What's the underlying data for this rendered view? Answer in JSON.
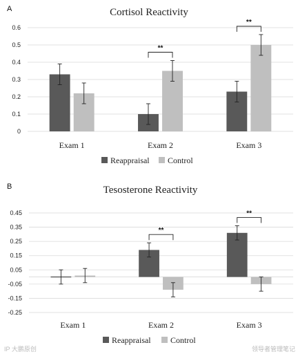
{
  "chart_data": [
    {
      "type": "bar",
      "panel_label": "A",
      "title": "Cortisol Reactivity",
      "categories": [
        "Exam 1",
        "Exam 2",
        "Exam 3"
      ],
      "series": [
        {
          "name": "Reappraisal",
          "color": "#595959",
          "values": [
            0.33,
            0.1,
            0.23
          ],
          "errors": [
            0.06,
            0.06,
            0.06
          ]
        },
        {
          "name": "Control",
          "color": "#bfbfbf",
          "values": [
            0.22,
            0.35,
            0.5
          ],
          "errors": [
            0.06,
            0.06,
            0.06
          ]
        }
      ],
      "ylim": [
        0,
        0.6
      ],
      "yticks": [
        0,
        0.1,
        0.2,
        0.3,
        0.4,
        0.5,
        0.6
      ],
      "ytick_labels": [
        "0",
        "0.1",
        "0.2",
        "0.3",
        "0.4",
        "0.5",
        "0.6"
      ],
      "grid": true,
      "legend": "bottom",
      "significance": [
        {
          "category_index": 1,
          "label": "**"
        },
        {
          "category_index": 2,
          "label": "**"
        }
      ]
    },
    {
      "type": "bar",
      "panel_label": "B",
      "title": "Tesosterone Reactivity",
      "categories": [
        "Exam 1",
        "Exam 2",
        "Exam 3"
      ],
      "series": [
        {
          "name": "Reappraisal",
          "color": "#595959",
          "values": [
            0.0,
            0.19,
            0.31
          ],
          "errors": [
            0.05,
            0.05,
            0.05
          ]
        },
        {
          "name": "Control",
          "color": "#bfbfbf",
          "values": [
            0.01,
            -0.09,
            -0.05
          ],
          "errors": [
            0.05,
            0.05,
            0.05
          ]
        }
      ],
      "ylim": [
        -0.25,
        0.45
      ],
      "yticks": [
        -0.25,
        -0.15,
        -0.05,
        0.05,
        0.15,
        0.25,
        0.35,
        0.45
      ],
      "ytick_labels": [
        "-0.25",
        "-0.15",
        "-0.05",
        "0.05",
        "0.15",
        "0.25",
        "0.35",
        "0.45"
      ],
      "grid": true,
      "legend": "bottom",
      "significance": [
        {
          "category_index": 1,
          "label": "**"
        },
        {
          "category_index": 2,
          "label": "**"
        }
      ]
    }
  ],
  "watermark_left": "IP 大鹏原创",
  "watermark_right": "领导者管理笔记"
}
